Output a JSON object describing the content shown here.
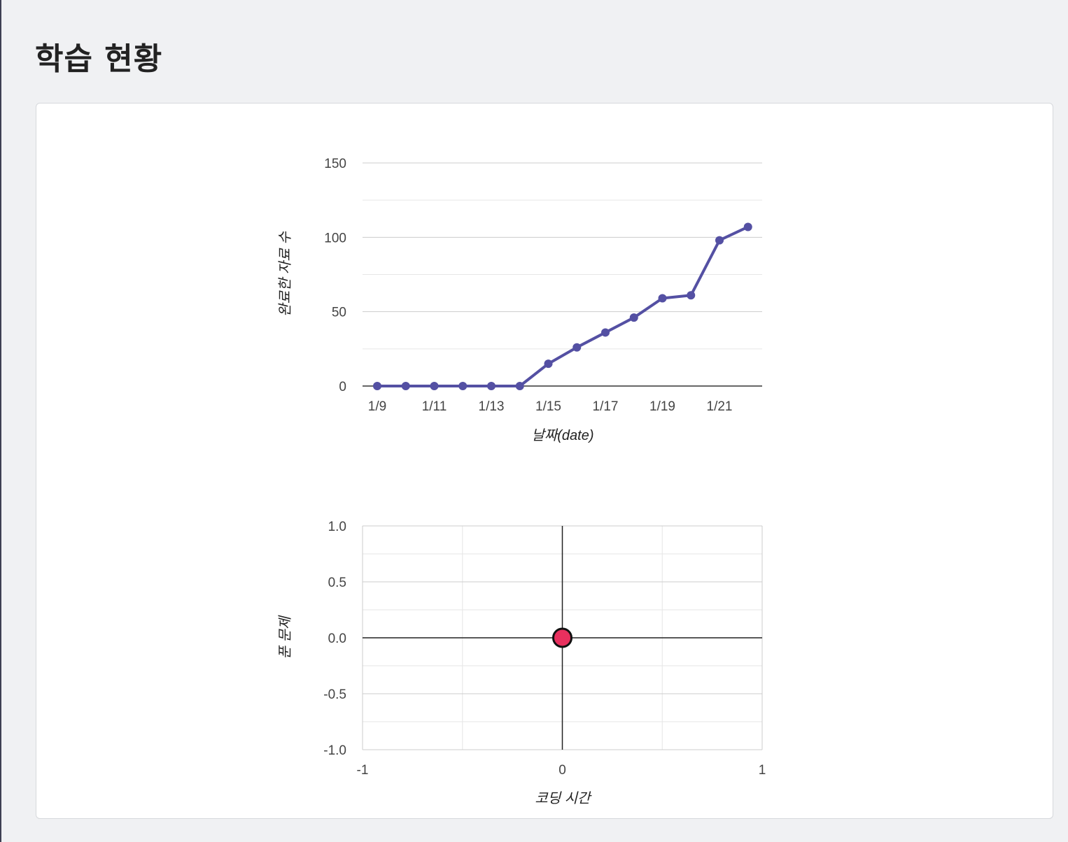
{
  "page": {
    "title": "학습 현황"
  },
  "colors": {
    "line": "#5450a3",
    "point": "#e8305e",
    "background": "#f0f1f3"
  },
  "chart_data": [
    {
      "type": "line",
      "x": [
        "1/9",
        "1/10",
        "1/11",
        "1/12",
        "1/13",
        "1/14",
        "1/15",
        "1/16",
        "1/17",
        "1/18",
        "1/19",
        "1/20",
        "1/21",
        "1/22"
      ],
      "x_tick_labels": [
        "1/9",
        "1/11",
        "1/13",
        "1/15",
        "1/17",
        "1/19",
        "1/21"
      ],
      "series": [
        {
          "values": [
            0,
            0,
            0,
            0,
            0,
            0,
            15,
            26,
            36,
            46,
            59,
            61,
            98,
            107
          ]
        }
      ],
      "xlabel": "날짜(date)",
      "ylabel": "완료한 자료 수",
      "ylim": [
        0,
        150
      ],
      "y_ticks": [
        0,
        50,
        100,
        150
      ],
      "grid": true
    },
    {
      "type": "scatter",
      "points": [
        {
          "x": 0,
          "y": 0
        }
      ],
      "xlabel": "코딩 시간",
      "ylabel": "푼 문제",
      "xlim": [
        -1,
        1
      ],
      "ylim": [
        -1.0,
        1.0
      ],
      "x_ticks": [
        "-1",
        "0",
        "1"
      ],
      "y_ticks": [
        "1.0",
        "0.5",
        "0.0",
        "-0.5",
        "-1.0"
      ],
      "grid": true
    }
  ]
}
